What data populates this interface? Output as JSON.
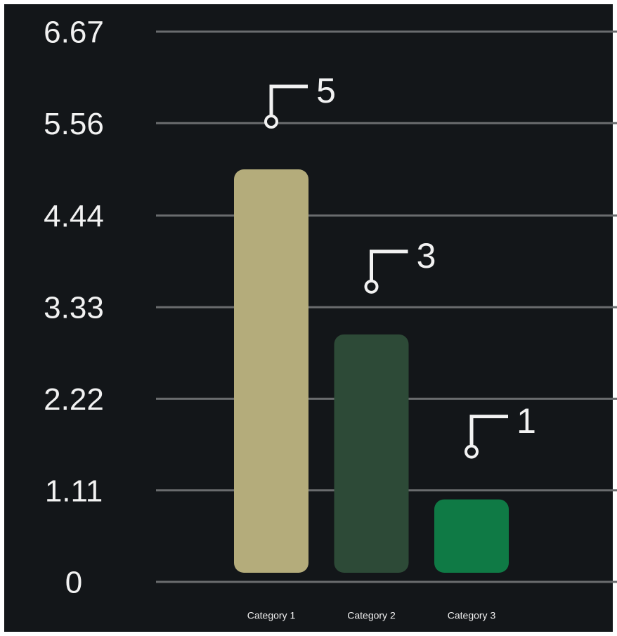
{
  "chart_data": {
    "type": "bar",
    "categories": [
      "Category 1",
      "Category 2",
      "Category 3"
    ],
    "values": [
      5,
      3,
      1
    ],
    "colors": [
      "#b4ac7b",
      "#2d4a37",
      "#0f7a45"
    ],
    "ylim": [
      0,
      6.67
    ],
    "yticks": [
      0,
      1.11,
      2.22,
      3.33,
      4.44,
      5.56,
      6.67
    ],
    "grid": true
  }
}
